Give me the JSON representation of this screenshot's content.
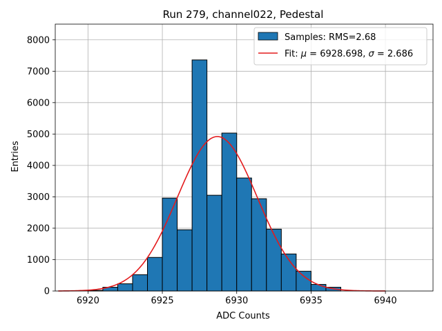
{
  "chart_data": {
    "type": "bar",
    "title": "Run 279, channel022, Pedestal",
    "xlabel": "ADC Counts",
    "ylabel": "Entries",
    "xlim": [
      6917.8,
      6943.2
    ],
    "ylim": [
      0,
      8500
    ],
    "xticks": [
      6920,
      6925,
      6930,
      6935,
      6940
    ],
    "yticks": [
      0,
      1000,
      2000,
      3000,
      4000,
      5000,
      6000,
      7000,
      8000
    ],
    "grid": true,
    "legend_position": "top-right",
    "histogram": {
      "name": "Samples: RMS=2.68",
      "color": "#1f77b4",
      "edgecolor": "#000000",
      "bin_edges": [
        6920,
        6921,
        6922,
        6923,
        6924,
        6925,
        6926,
        6927,
        6928,
        6929,
        6930,
        6931,
        6932,
        6933,
        6934,
        6935,
        6936,
        6937
      ],
      "counts": [
        20,
        120,
        230,
        520,
        1070,
        2960,
        1950,
        7360,
        3050,
        5030,
        3600,
        2940,
        1970,
        1180,
        630,
        210,
        120
      ]
    },
    "fit": {
      "name_prefix": "Fit: ",
      "mu_symbol": "μ",
      "mu_value": " = 6928.698, ",
      "sigma_symbol": "σ",
      "sigma_value": " = 2.686",
      "color": "#e31a1c",
      "mu": 6928.698,
      "sigma": 2.686,
      "amplitude": 4920,
      "x_range": [
        6918,
        6940
      ]
    }
  }
}
